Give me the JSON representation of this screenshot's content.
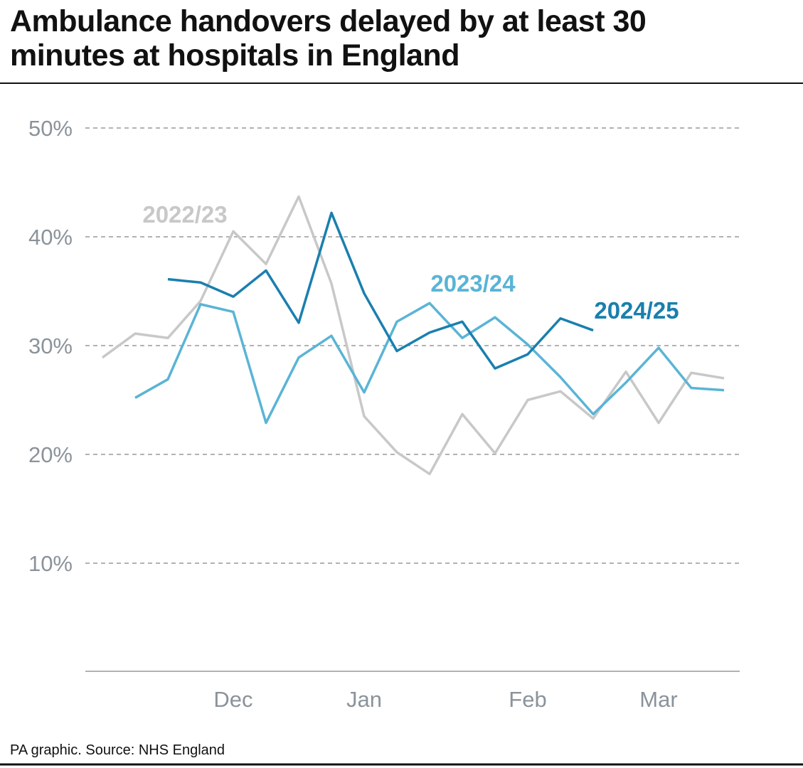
{
  "chart_data": {
    "type": "line",
    "title": "Ambulance handovers delayed by at least 30 minutes at hospitals in England",
    "source": "PA graphic. Source: NHS England",
    "categories": [
      null,
      null,
      null,
      null,
      "Dec",
      null,
      null,
      null,
      "Jan",
      null,
      null,
      null,
      null,
      "Feb",
      null,
      null,
      null,
      "Mar",
      null,
      null
    ],
    "ylim": [
      0,
      50
    ],
    "yticks": [
      {
        "value": 10,
        "label": "10%"
      },
      {
        "value": 20,
        "label": "20%"
      },
      {
        "value": 30,
        "label": "30%"
      },
      {
        "value": 40,
        "label": "40%"
      },
      {
        "value": 50,
        "label": "50%"
      }
    ],
    "grid": true,
    "series": [
      {
        "name": "2022/23",
        "color": "#c8c8c8",
        "values": [
          28.9,
          31.1,
          30.7,
          34.1,
          40.5,
          37.5,
          43.7,
          35.7,
          23.5,
          20.2,
          18.2,
          23.7,
          20.1,
          25.0,
          25.8,
          23.3,
          27.6,
          22.9,
          27.5,
          27.0
        ]
      },
      {
        "name": "2023/24",
        "color": "#5ab4d6",
        "values": [
          null,
          25.2,
          26.9,
          33.8,
          33.1,
          22.9,
          28.9,
          30.9,
          25.7,
          32.2,
          33.9,
          30.7,
          32.6,
          30.1,
          27.1,
          23.7,
          26.6,
          29.8,
          26.1,
          25.9
        ]
      },
      {
        "name": "2024/25",
        "color": "#1a7fae",
        "values": [
          null,
          null,
          36.1,
          35.8,
          34.5,
          36.9,
          32.1,
          42.2,
          34.8,
          29.5,
          31.2,
          32.2,
          27.9,
          29.2,
          32.5,
          31.4,
          null,
          null,
          null,
          null
        ]
      }
    ]
  }
}
